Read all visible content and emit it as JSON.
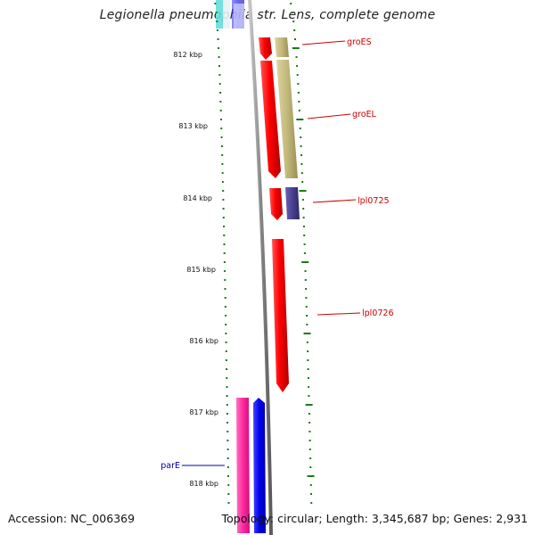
{
  "title": "Legionella pneumophila str. Lens, complete genome",
  "footer": {
    "accession": "Accession: NC_006369",
    "summary": "Topology: circular; Length: 3,345,687 bp; Genes: 2,931"
  },
  "colors": {
    "backbone": "#8a8a8a",
    "tick": "#1a7a1a",
    "label_red": "#cc0000",
    "label_blue": "#0000aa",
    "gene_red": "#ff0000",
    "gene_khaki": "#c2b87a",
    "gene_navy": "#4a3f8f",
    "gene_pink": "#ff2aa0",
    "gene_blue": "#0000ee"
  },
  "ticks": [
    {
      "label": "812 kbp"
    },
    {
      "label": "813 kbp"
    },
    {
      "label": "814 kbp"
    },
    {
      "label": "815 kbp"
    },
    {
      "label": "816 kbp"
    },
    {
      "label": "817 kbp"
    },
    {
      "label": "818 kbp"
    }
  ],
  "genes": [
    {
      "name": "groES",
      "color": "#cc0000"
    },
    {
      "name": "groEL",
      "color": "#cc0000"
    },
    {
      "name": "lpl0725",
      "color": "#cc0000"
    },
    {
      "name": "lpl0726",
      "color": "#cc0000"
    },
    {
      "name": "parE",
      "color": "#0000aa"
    }
  ]
}
